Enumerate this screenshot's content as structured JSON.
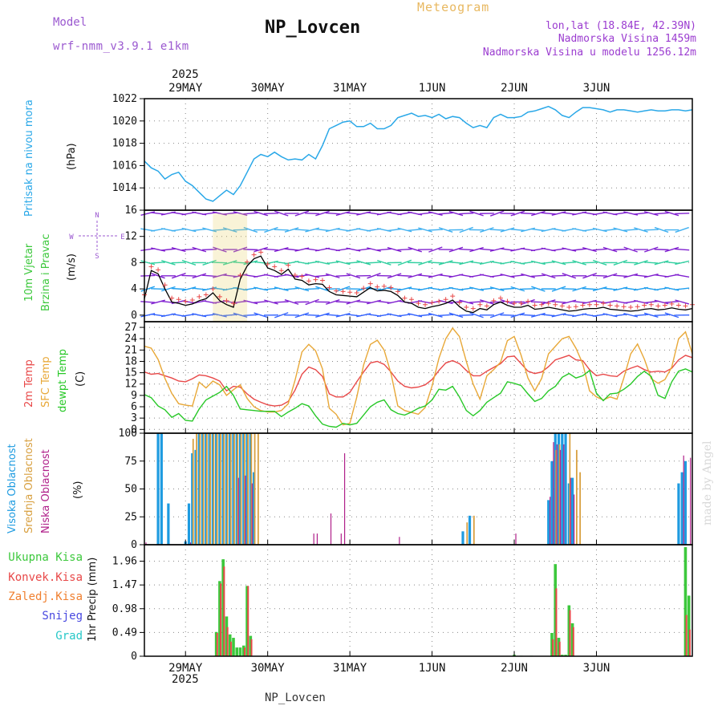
{
  "header": {
    "model_label": "Model",
    "model_name": "wrf-nmm_v3.9.1 e1km",
    "station": "NP_Lovcen",
    "meteogram": "Meteogram",
    "lonlat": "lon,lat (18.84E, 42.39N)",
    "altitude": "Nadmorska Visina 1459m",
    "model_altitude": "Nadmorska Visina u modelu 1256.12m"
  },
  "footer": {
    "station": "NP_Lovcen"
  },
  "credit": "made by Angel",
  "time_axis": {
    "year": "2025",
    "days": [
      "29MAY",
      "30MAY",
      "31MAY",
      "1JUN",
      "2JUN",
      "3JUN"
    ]
  },
  "panels": {
    "pressure": {
      "label": "Pritisak na nivou mora",
      "unit": "(hPa)"
    },
    "wind": {
      "label1": "10m Vjetar",
      "label2": "Brzina i Pravac",
      "unit": "(m/s)",
      "compass": {
        "n": "N",
        "s": "S",
        "w": "W",
        "e": "E"
      }
    },
    "temp": {
      "label_2m": "2m Temp",
      "label_sfc": "SFC Temp",
      "label_dewpt": "dewpt Temp",
      "unit": "(C)"
    },
    "cloud": {
      "label_high": "Visoka Oblacnost",
      "label_mid": "Srednja Oblacnost",
      "label_low": "Niska Oblacnost",
      "unit": "(%)"
    },
    "precip": {
      "legend": [
        "Ukupna Kisa",
        "Konvek.Kisa",
        "Zaledj.Kisa",
        "Snijeg",
        "Grad"
      ],
      "unit": "1hr Precip (mm)"
    }
  },
  "colors": {
    "pressure": "#2aa8e8",
    "t2m": "#e84848",
    "sfc": "#e8a838",
    "dewpt": "#28c828",
    "cloud_high": "#1e9be0",
    "cloud_mid": "#d8a040",
    "cloud_low": "#b0208a",
    "precip_total": "#3cc83c",
    "precip_conv": "#e84848",
    "precip_frz": "#f08030",
    "precip_snow": "#4848e0",
    "precip_hail": "#28c8c8",
    "model_label": "#9b59d0",
    "meteogram_label": "#e8b860",
    "info_label": "#9b3cd0",
    "grid": "#888888"
  },
  "chart_data": [
    {
      "type": "line",
      "name": "pressure",
      "ylabel": "Pritisak na nivou mora (hPa)",
      "ylim": [
        1012,
        1022
      ],
      "yticks": [
        1014,
        1016,
        1018,
        1020,
        1022
      ],
      "x_hours": [
        0,
        2,
        4,
        6,
        8,
        10,
        12,
        14,
        16,
        18,
        20,
        22,
        24,
        26,
        28,
        30,
        32,
        34,
        36,
        38,
        40,
        42,
        44,
        46,
        48,
        50,
        52,
        54,
        56,
        58,
        60,
        62,
        64,
        66,
        68,
        70,
        72,
        74,
        76,
        78,
        80,
        82,
        84,
        86,
        88,
        90,
        92,
        94,
        96,
        98,
        100,
        102,
        104,
        106,
        108,
        110,
        112,
        114,
        116,
        118,
        120,
        122,
        124,
        126,
        128,
        130,
        132,
        134,
        136,
        138,
        140,
        142,
        144,
        146,
        148,
        150,
        152,
        154,
        156,
        158,
        160
      ],
      "values": [
        1016.4,
        1015.8,
        1015.5,
        1014.8,
        1015.2,
        1015.4,
        1014.6,
        1014.2,
        1013.6,
        1013.0,
        1012.8,
        1013.3,
        1013.8,
        1013.4,
        1014.2,
        1015.4,
        1016.6,
        1017.0,
        1016.8,
        1017.2,
        1016.8,
        1016.5,
        1016.6,
        1016.5,
        1017.0,
        1016.6,
        1017.8,
        1019.3,
        1019.6,
        1019.9,
        1020.0,
        1019.5,
        1019.5,
        1019.8,
        1019.3,
        1019.3,
        1019.6,
        1020.3,
        1020.5,
        1020.7,
        1020.4,
        1020.5,
        1020.3,
        1020.6,
        1020.2,
        1020.4,
        1020.3,
        1019.8,
        1019.4,
        1019.6,
        1019.4,
        1020.3,
        1020.6,
        1020.3,
        1020.3,
        1020.4,
        1020.8,
        1020.9,
        1021.1,
        1021.3,
        1021.0,
        1020.5,
        1020.3,
        1020.8,
        1021.2,
        1021.2,
        1021.1,
        1021.0,
        1020.8,
        1021.0,
        1021.0,
        1020.9,
        1020.8,
        1020.9,
        1021.0,
        1020.9,
        1020.9,
        1021.0,
        1021.0,
        1020.9,
        1021.0
      ]
    },
    {
      "type": "line",
      "name": "wind_speed",
      "ylabel": "10m Vjetar Brzina i Pravac (m/s)",
      "ylim": [
        -1,
        16
      ],
      "yticks": [
        0,
        4,
        8,
        12,
        16
      ],
      "x_hours": [
        0,
        2,
        4,
        6,
        8,
        10,
        12,
        14,
        16,
        18,
        20,
        22,
        24,
        26,
        28,
        30,
        32,
        34,
        36,
        38,
        40,
        42,
        44,
        46,
        48,
        50,
        52,
        54,
        56,
        58,
        60,
        62,
        64,
        66,
        68,
        70,
        72,
        74,
        76,
        78,
        80,
        82,
        84,
        86,
        88,
        90,
        92,
        94,
        96,
        98,
        100,
        102,
        104,
        106,
        108,
        110,
        112,
        114,
        116,
        118,
        120,
        122,
        124,
        126,
        128,
        130,
        132,
        134,
        136,
        138,
        140,
        142,
        144,
        146,
        148,
        150,
        152,
        154,
        156,
        158,
        160
      ],
      "values": [
        2.5,
        6.8,
        6.3,
        4.0,
        2.0,
        1.8,
        1.5,
        1.7,
        2.2,
        2.5,
        3.4,
        2.2,
        1.6,
        1.2,
        5.5,
        7.5,
        8.6,
        9.0,
        7.2,
        6.8,
        6.2,
        7.0,
        5.5,
        5.3,
        4.6,
        4.8,
        4.7,
        3.6,
        3.1,
        3.0,
        2.9,
        2.8,
        3.5,
        4.2,
        3.7,
        3.8,
        3.6,
        3.0,
        2.0,
        1.8,
        1.2,
        1.0,
        1.3,
        1.5,
        1.8,
        2.3,
        1.3,
        0.6,
        0.4,
        1.0,
        0.8,
        1.6,
        2.0,
        1.5,
        1.2,
        1.2,
        1.5,
        0.9,
        1.0,
        1.2,
        1.0,
        0.8,
        0.6,
        0.7,
        0.9,
        1.0,
        1.0,
        1.2,
        0.9,
        0.8,
        0.7,
        0.6,
        0.7,
        0.9,
        1.0,
        0.8,
        0.9,
        1.1,
        0.9,
        0.8,
        1.0
      ]
    },
    {
      "type": "line",
      "name": "temperature",
      "ylabel": "(C)",
      "ylim": [
        -1,
        28.5
      ],
      "yticks": [
        0,
        3,
        6,
        9,
        12,
        15,
        18,
        21,
        24,
        27
      ],
      "x_hours": [
        0,
        2,
        4,
        6,
        8,
        10,
        12,
        14,
        16,
        18,
        20,
        22,
        24,
        26,
        28,
        30,
        32,
        34,
        36,
        38,
        40,
        42,
        44,
        46,
        48,
        50,
        52,
        54,
        56,
        58,
        60,
        62,
        64,
        66,
        68,
        70,
        72,
        74,
        76,
        78,
        80,
        82,
        84,
        86,
        88,
        90,
        92,
        94,
        96,
        98,
        100,
        102,
        104,
        106,
        108,
        110,
        112,
        114,
        116,
        118,
        120,
        122,
        124,
        126,
        128,
        130,
        132,
        134,
        136,
        138,
        140,
        142,
        144,
        146,
        148,
        150,
        152,
        154,
        156,
        158,
        160
      ],
      "series": [
        {
          "name": "2m Temp",
          "values": [
            15.2,
            14.6,
            14.8,
            14.2,
            13.6,
            12.8,
            12.6,
            13.4,
            14.4,
            14.2,
            13.6,
            12.8,
            10.2,
            11.4,
            11.2,
            9.4,
            8.0,
            7.2,
            6.5,
            6.2,
            6.4,
            7.4,
            10.4,
            14.6,
            16.5,
            15.8,
            14.0,
            9.4,
            8.6,
            8.6,
            9.8,
            12.6,
            15.2,
            17.6,
            18.0,
            17.2,
            15.2,
            12.8,
            11.4,
            11.0,
            11.2,
            11.8,
            13.2,
            15.6,
            17.6,
            18.2,
            17.4,
            15.6,
            14.2,
            14.2,
            15.4,
            16.4,
            17.4,
            19.2,
            19.4,
            17.4,
            15.4,
            14.8,
            15.2,
            16.6,
            18.4,
            19.0,
            19.6,
            18.4,
            18.2,
            15.8,
            14.2,
            14.6,
            14.2,
            14.0,
            15.4,
            16.2,
            16.8,
            15.8,
            15.2,
            15.4,
            15.2,
            16.2,
            18.4,
            19.6,
            19.0
          ]
        },
        {
          "name": "SFC Temp",
          "values": [
            22.0,
            21.5,
            18.5,
            13.5,
            9.5,
            6.8,
            6.4,
            6.2,
            12.5,
            11.0,
            12.8,
            11.8,
            9.0,
            10.5,
            11.8,
            8.2,
            6.0,
            5.0,
            4.6,
            4.6,
            5.0,
            6.8,
            13.0,
            20.5,
            22.5,
            20.8,
            16.0,
            5.6,
            4.0,
            1.2,
            1.6,
            8.5,
            17.0,
            22.5,
            23.6,
            21.0,
            14.8,
            6.2,
            5.0,
            4.5,
            4.0,
            5.8,
            11.5,
            18.8,
            24.0,
            26.8,
            24.6,
            18.0,
            12.0,
            8.0,
            14.2,
            15.8,
            17.8,
            23.5,
            24.6,
            19.6,
            13.6,
            10.2,
            13.5,
            20.0,
            22.0,
            24.0,
            24.6,
            21.5,
            17.4,
            10.2,
            8.6,
            7.8,
            8.6,
            8.0,
            13.6,
            20.0,
            22.6,
            18.6,
            13.4,
            12.2,
            13.2,
            16.5,
            24.0,
            25.8,
            20.0
          ]
        },
        {
          "name": "dewpt Temp",
          "values": [
            9.2,
            8.4,
            6.2,
            5.2,
            3.2,
            4.2,
            2.4,
            2.2,
            5.4,
            7.8,
            8.8,
            9.8,
            11.4,
            9.0,
            5.4,
            5.2,
            5.0,
            4.8,
            4.8,
            4.8,
            3.4,
            4.6,
            5.6,
            6.8,
            6.2,
            3.6,
            1.4,
            0.8,
            0.6,
            1.6,
            1.2,
            1.6,
            3.8,
            6.0,
            7.2,
            7.8,
            5.2,
            4.2,
            3.8,
            4.6,
            5.6,
            6.2,
            7.8,
            10.6,
            10.4,
            11.4,
            8.6,
            5.0,
            3.6,
            5.0,
            7.2,
            8.4,
            9.6,
            12.6,
            12.2,
            11.6,
            9.4,
            7.4,
            8.2,
            10.2,
            11.4,
            13.8,
            14.8,
            13.6,
            14.2,
            15.6,
            9.6,
            7.6,
            9.4,
            9.6,
            10.6,
            12.0,
            14.0,
            15.4,
            14.0,
            9.0,
            8.2,
            12.6,
            15.4,
            16.0,
            15.2
          ]
        }
      ]
    },
    {
      "type": "bar",
      "name": "cloud_cover",
      "ylabel": "(%)",
      "ylim": [
        0,
        100
      ],
      "yticks": [
        0,
        25,
        50,
        75,
        100
      ],
      "series": [
        {
          "name": "Visoka Oblacnost",
          "x_hours": [
            4,
            5,
            7,
            12,
            13,
            14,
            15,
            16,
            17,
            18,
            19,
            20,
            21,
            22,
            23,
            24,
            25,
            26,
            27,
            28,
            29,
            30,
            31,
            32,
            93,
            95,
            118,
            119,
            120,
            121,
            122,
            123,
            124,
            125,
            156,
            157,
            158
          ],
          "values": [
            100,
            100,
            37,
            3,
            37,
            82,
            85,
            100,
            100,
            100,
            100,
            100,
            100,
            100,
            100,
            100,
            100,
            100,
            100,
            100,
            100,
            100,
            100,
            65,
            12,
            26,
            40,
            75,
            100,
            100,
            100,
            100,
            55,
            60,
            55,
            65,
            75
          ]
        },
        {
          "name": "Srednja Oblacnost",
          "x_hours": [
            14,
            15,
            16,
            17,
            18,
            19,
            20,
            21,
            22,
            23,
            24,
            25,
            26,
            27,
            28,
            29,
            30,
            31,
            32,
            33,
            94,
            96,
            120,
            121,
            124,
            126,
            127
          ],
          "values": [
            95,
            100,
            100,
            100,
            100,
            100,
            100,
            100,
            100,
            100,
            100,
            100,
            100,
            100,
            100,
            100,
            100,
            100,
            100,
            100,
            20,
            26,
            85,
            90,
            100,
            85,
            65
          ]
        },
        {
          "name": "Niska Oblacnost",
          "x_hours": [
            0,
            13,
            27,
            29,
            31,
            49,
            50,
            54,
            57,
            58,
            74,
            108,
            118,
            119,
            120,
            121,
            122,
            124,
            125,
            157,
            159
          ],
          "values": [
            2,
            2,
            60,
            62,
            55,
            10,
            10,
            28,
            10,
            82,
            7,
            10,
            43,
            92,
            90,
            85,
            90,
            60,
            45,
            80,
            78
          ]
        }
      ]
    },
    {
      "type": "bar",
      "name": "precipitation",
      "ylabel": "1hr Precip (mm)",
      "ylim": [
        0,
        2.3
      ],
      "yticks": [
        0,
        0.49,
        0.98,
        1.47,
        1.96
      ],
      "series": [
        {
          "name": "Ukupna Kisa",
          "x_hours": [
            21,
            22,
            23,
            24,
            25,
            26,
            27,
            28,
            29,
            30,
            31,
            108,
            110,
            113,
            119,
            120,
            121,
            122,
            123,
            124,
            125,
            158,
            159
          ],
          "values": [
            0.5,
            1.55,
            2.0,
            0.82,
            0.45,
            0.38,
            0.18,
            0.18,
            0.22,
            1.45,
            0.42,
            0.03,
            0.01,
            0.01,
            0.48,
            1.9,
            0.38,
            0.03,
            0.03,
            1.05,
            0.68,
            2.25,
            1.25
          ]
        },
        {
          "name": "Konvek.Kisa",
          "x_hours": [
            21,
            22,
            23,
            24,
            25,
            29,
            30,
            31,
            119,
            120,
            121,
            124,
            125,
            158,
            159
          ],
          "values": [
            0.48,
            1.5,
            1.85,
            0.6,
            0.3,
            0.18,
            1.45,
            0.35,
            0.35,
            1.4,
            0.3,
            0.95,
            0.6,
            0.85,
            0.55
          ]
        }
      ]
    }
  ]
}
